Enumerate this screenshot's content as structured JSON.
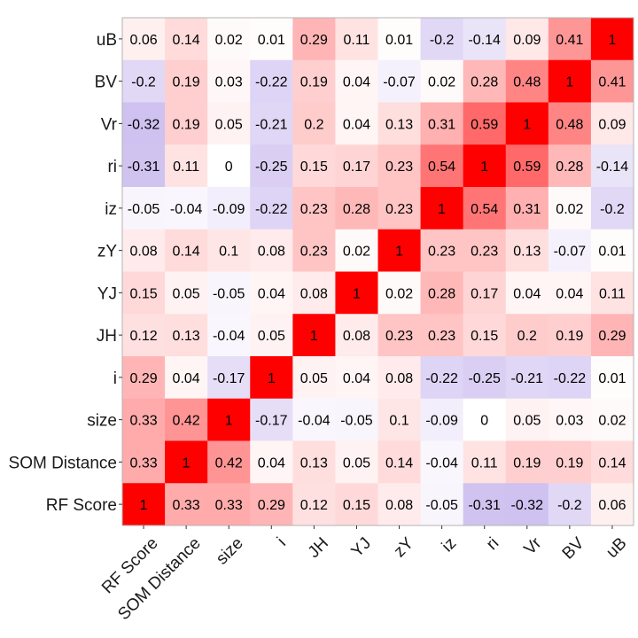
{
  "chart_data": {
    "type": "heatmap",
    "title": "",
    "xlabel": "",
    "ylabel": "",
    "variables": [
      "RF Score",
      "SOM Distance",
      "size",
      "i",
      "JH",
      "YJ",
      "zY",
      "iz",
      "ri",
      "Vr",
      "BV",
      "uB"
    ],
    "rows": [
      {
        "name": "uB",
        "values": [
          0.06,
          0.14,
          0.02,
          0.01,
          0.29,
          0.11,
          0.01,
          -0.2,
          -0.14,
          0.09,
          0.41,
          1
        ]
      },
      {
        "name": "BV",
        "values": [
          -0.2,
          0.19,
          0.03,
          -0.22,
          0.19,
          0.04,
          -0.07,
          0.02,
          0.28,
          0.48,
          1,
          0.41
        ]
      },
      {
        "name": "Vr",
        "values": [
          -0.32,
          0.19,
          0.05,
          -0.21,
          0.2,
          0.04,
          0.13,
          0.31,
          0.59,
          1,
          0.48,
          0.09
        ]
      },
      {
        "name": "ri",
        "values": [
          -0.31,
          0.11,
          0,
          -0.25,
          0.15,
          0.17,
          0.23,
          0.54,
          1,
          0.59,
          0.28,
          -0.14
        ]
      },
      {
        "name": "iz",
        "values": [
          -0.05,
          -0.04,
          -0.09,
          -0.22,
          0.23,
          0.28,
          0.23,
          1,
          0.54,
          0.31,
          0.02,
          -0.2
        ]
      },
      {
        "name": "zY",
        "values": [
          0.08,
          0.14,
          0.1,
          0.08,
          0.23,
          0.02,
          1,
          0.23,
          0.23,
          0.13,
          -0.07,
          0.01
        ]
      },
      {
        "name": "YJ",
        "values": [
          0.15,
          0.05,
          -0.05,
          0.04,
          0.08,
          1,
          0.02,
          0.28,
          0.17,
          0.04,
          0.04,
          0.11
        ]
      },
      {
        "name": "JH",
        "values": [
          0.12,
          0.13,
          -0.04,
          0.05,
          1,
          0.08,
          0.23,
          0.23,
          0.15,
          0.2,
          0.19,
          0.29
        ]
      },
      {
        "name": "i",
        "values": [
          0.29,
          0.04,
          -0.17,
          1,
          0.05,
          0.04,
          0.08,
          -0.22,
          -0.25,
          -0.21,
          -0.22,
          0.01
        ]
      },
      {
        "name": "size",
        "values": [
          0.33,
          0.42,
          1,
          -0.17,
          -0.04,
          -0.05,
          0.1,
          -0.09,
          0,
          0.05,
          0.03,
          0.02
        ]
      },
      {
        "name": "SOM Distance",
        "values": [
          0.33,
          1,
          0.42,
          0.04,
          0.13,
          0.05,
          0.14,
          -0.04,
          0.11,
          0.19,
          0.19,
          0.14
        ]
      },
      {
        "name": "RF Score",
        "values": [
          1,
          0.33,
          0.33,
          0.29,
          0.12,
          0.15,
          0.08,
          -0.05,
          -0.31,
          -0.32,
          -0.2,
          0.06
        ]
      }
    ],
    "value_range": [
      -1,
      1
    ],
    "colors": {
      "low": "#6a3dd0",
      "mid": "#ffffff",
      "high": "#ff0000"
    },
    "grid": false,
    "legend": "none"
  }
}
